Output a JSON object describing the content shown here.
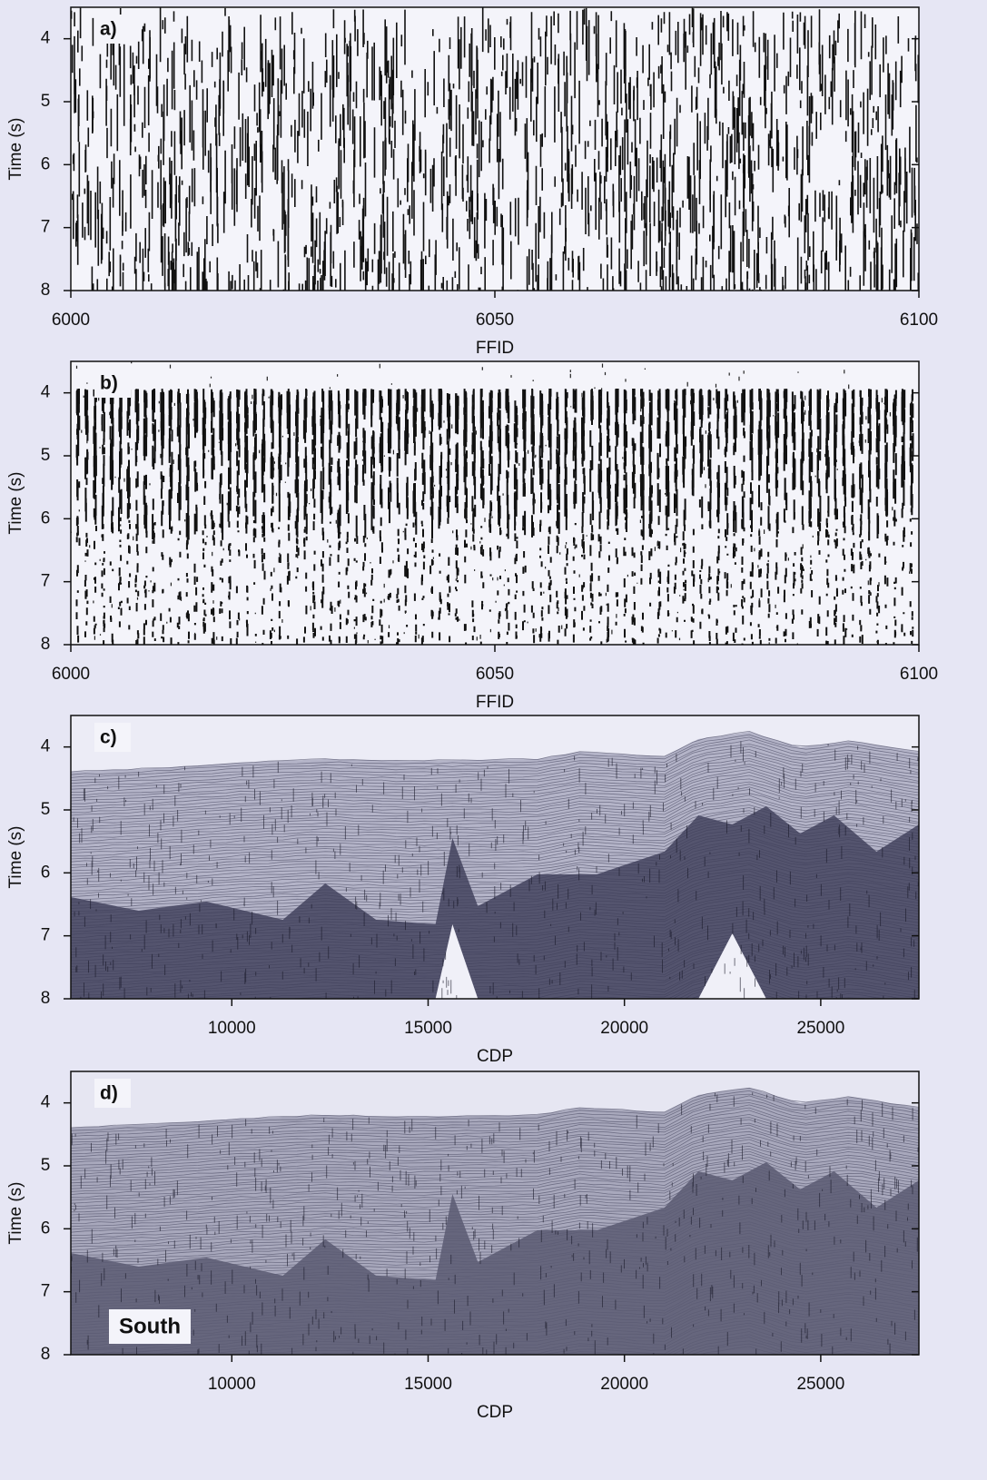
{
  "chart_data": [
    {
      "type": "seismic",
      "panel_label": "a)",
      "xlabel": "FFID",
      "ylabel": "Time (s)",
      "xlim": [
        6000,
        6100
      ],
      "xticks": [
        6000,
        6050,
        6100
      ],
      "ylim": [
        3.5,
        8
      ],
      "y_inverted": true,
      "yticks": [
        4,
        5,
        6,
        7,
        8
      ]
    },
    {
      "type": "seismic",
      "panel_label": "b)",
      "xlabel": "FFID",
      "ylabel": "Time (s)",
      "xlim": [
        6000,
        6100
      ],
      "xticks": [
        6000,
        6050,
        6100
      ],
      "ylim": [
        3.5,
        8
      ],
      "y_inverted": true,
      "yticks": [
        4,
        5,
        6,
        7,
        8
      ]
    },
    {
      "type": "seismic",
      "panel_label": "c)",
      "xlabel": "CDP",
      "ylabel": "Time (s)",
      "xlim": [
        5900,
        27500
      ],
      "xticks": [
        10000,
        15000,
        20000,
        25000
      ],
      "ylim": [
        3.5,
        8
      ],
      "y_inverted": true,
      "yticks": [
        4,
        5,
        6,
        7,
        8
      ]
    },
    {
      "type": "seismic",
      "panel_label": "d)",
      "xlabel": "CDP",
      "ylabel": "Time (s)",
      "xlim": [
        5900,
        27500
      ],
      "xticks": [
        10000,
        15000,
        20000,
        25000
      ],
      "ylim": [
        3.5,
        8
      ],
      "y_inverted": true,
      "yticks": [
        4,
        5,
        6,
        7,
        8
      ],
      "annotation": "South"
    }
  ]
}
